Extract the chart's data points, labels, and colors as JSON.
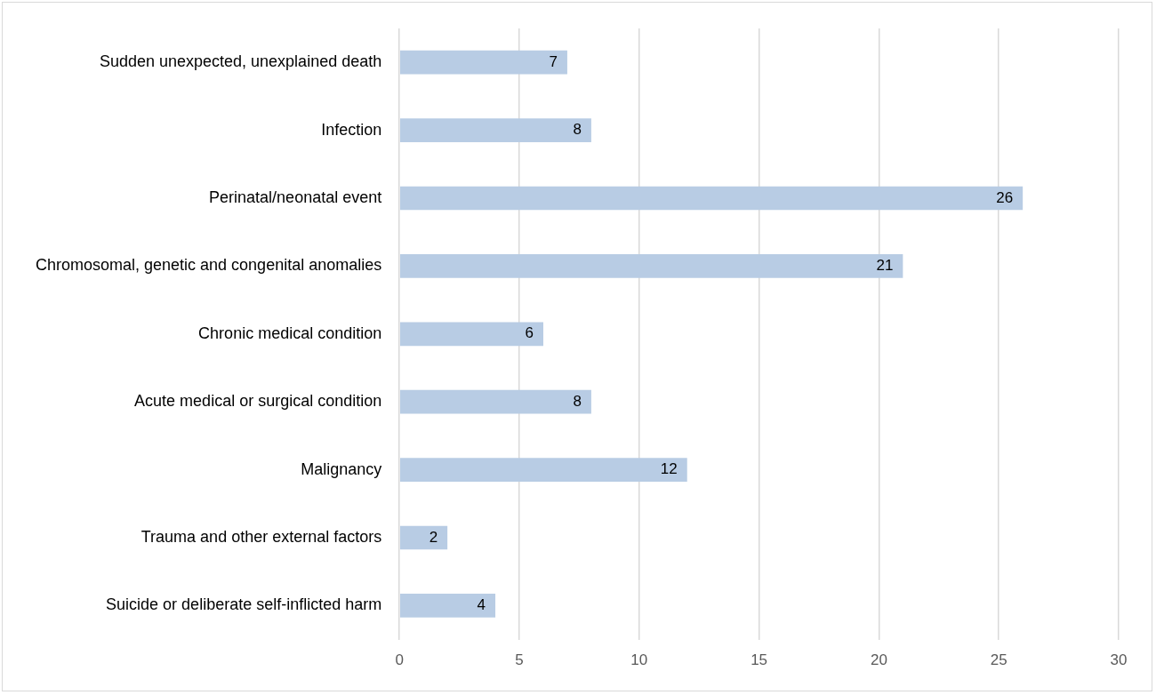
{
  "chart_data": {
    "type": "bar",
    "orientation": "horizontal",
    "categories": [
      "Sudden unexpected, unexplained death",
      "Infection",
      "Perinatal/neonatal event",
      "Chromosomal, genetic and congenital anomalies",
      "Chronic medical condition",
      "Acute medical or surgical condition",
      "Malignancy",
      "Trauma and other external factors",
      "Suicide or deliberate self-inflicted harm"
    ],
    "values": [
      7,
      8,
      26,
      21,
      6,
      8,
      12,
      2,
      4
    ],
    "color": "#b8cce4",
    "xlim": [
      0,
      30
    ],
    "xticks": [
      0,
      5,
      10,
      15,
      20,
      25,
      30
    ],
    "grid": "x",
    "data_labels": true,
    "legend": false
  }
}
